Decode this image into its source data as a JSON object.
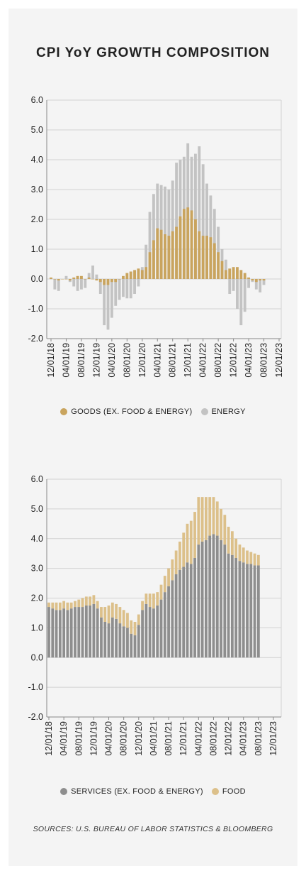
{
  "title": "CPI YoY GROWTH COMPOSITION",
  "source": "SOURCES: U.S. BUREAU OF LABOR STATISTICS & BLOOMBERG",
  "colors": {
    "goods": "#c9a45e",
    "energy": "#c3c3c3",
    "services": "#8e8e8e",
    "food": "#dcc08a"
  },
  "chart_data": [
    {
      "type": "bar",
      "stacked": false,
      "ylim": [
        -2.0,
        6.0
      ],
      "yticks": [
        "6.0",
        "5.0",
        "4.0",
        "3.0",
        "2.0",
        "1.0",
        "0.0",
        "-1.0",
        "-2.0"
      ],
      "xtick_labels": [
        "12/01/18",
        "04/01/19",
        "08/01/19",
        "12/01/19",
        "04/01/20",
        "08/01/20",
        "12/01/20",
        "04/01/21",
        "08/01/21",
        "12/01/21",
        "04/01/22",
        "08/01/22",
        "12/01/22",
        "04/01/23",
        "08/01/23",
        "12/01/23"
      ],
      "grid": "horizontal",
      "legend_position": "bottom",
      "series": [
        {
          "name": "GOODS (EX. FOOD & ENERGY)",
          "values": [
            0.05,
            0.0,
            -0.05,
            0.0,
            0.0,
            -0.05,
            0.05,
            0.1,
            0.1,
            0.0,
            0.05,
            0.0,
            -0.05,
            -0.1,
            -0.2,
            -0.2,
            -0.1,
            -0.1,
            0.0,
            0.1,
            0.2,
            0.25,
            0.3,
            0.35,
            0.3,
            0.4,
            0.9,
            1.3,
            1.7,
            1.65,
            1.5,
            1.45,
            1.6,
            1.75,
            2.1,
            2.35,
            2.4,
            2.3,
            2.0,
            1.6,
            1.45,
            1.45,
            1.4,
            1.2,
            0.9,
            0.6,
            0.3,
            0.35,
            0.4,
            0.4,
            0.3,
            0.2,
            0.05,
            -0.05,
            -0.1,
            -0.05,
            -0.05
          ]
        },
        {
          "name": "ENERGY",
          "values": [
            0.0,
            -0.35,
            -0.4,
            0.0,
            0.1,
            -0.1,
            -0.25,
            -0.4,
            -0.35,
            -0.3,
            0.2,
            0.45,
            0.15,
            -0.5,
            -1.55,
            -1.7,
            -1.3,
            -0.9,
            -0.7,
            -0.6,
            -0.65,
            -0.65,
            -0.5,
            -0.25,
            0.4,
            1.15,
            2.25,
            2.85,
            3.2,
            3.15,
            3.1,
            3.0,
            3.3,
            3.9,
            4.0,
            4.1,
            4.55,
            4.1,
            4.2,
            4.45,
            3.85,
            3.2,
            2.8,
            2.35,
            1.75,
            1.0,
            0.65,
            -0.5,
            -0.4,
            -1.0,
            -1.55,
            -1.1,
            -0.3,
            -0.1,
            -0.35,
            -0.45,
            -0.2
          ]
        }
      ]
    },
    {
      "type": "bar",
      "stacked": true,
      "ylim": [
        -2.0,
        6.0
      ],
      "yticks": [
        "6.0",
        "5.0",
        "4.0",
        "3.0",
        "2.0",
        "1.0",
        "0.0",
        "-1.0",
        "-2.0"
      ],
      "xtick_labels": [
        "12/01/18",
        "04/01/19",
        "08/01/19",
        "12/01/19",
        "04/01/20",
        "08/01/20",
        "12/01/20",
        "04/01/21",
        "08/01/21",
        "12/01/21",
        "04/01/22",
        "08/01/22",
        "12/01/22",
        "04/01/23",
        "08/01/23",
        "12/01/23"
      ],
      "grid": "horizontal",
      "legend_position": "bottom",
      "series": [
        {
          "name": "SERVICES (EX. FOOD & ENERGY)",
          "values": [
            1.7,
            1.65,
            1.6,
            1.6,
            1.65,
            1.6,
            1.65,
            1.7,
            1.7,
            1.7,
            1.75,
            1.75,
            1.8,
            1.65,
            1.35,
            1.2,
            1.15,
            1.35,
            1.3,
            1.15,
            1.05,
            1.0,
            0.8,
            0.75,
            1.1,
            1.6,
            1.8,
            1.7,
            1.65,
            1.75,
            1.95,
            2.2,
            2.4,
            2.6,
            2.8,
            2.95,
            3.05,
            3.2,
            3.15,
            3.35,
            3.8,
            3.9,
            3.95,
            4.1,
            4.15,
            4.1,
            3.95,
            3.8,
            3.5,
            3.45,
            3.35,
            3.25,
            3.2,
            3.15,
            3.15,
            3.1,
            3.1
          ]
        },
        {
          "name": "FOOD",
          "values": [
            0.15,
            0.2,
            0.25,
            0.25,
            0.25,
            0.25,
            0.2,
            0.2,
            0.25,
            0.3,
            0.3,
            0.3,
            0.3,
            0.25,
            0.35,
            0.5,
            0.6,
            0.5,
            0.5,
            0.55,
            0.55,
            0.5,
            0.45,
            0.45,
            0.35,
            0.3,
            0.35,
            0.45,
            0.5,
            0.45,
            0.5,
            0.55,
            0.6,
            0.7,
            0.8,
            0.95,
            1.15,
            1.3,
            1.45,
            1.55,
            1.6,
            1.5,
            1.45,
            1.3,
            1.25,
            1.15,
            1.05,
            1.0,
            0.9,
            0.8,
            0.65,
            0.55,
            0.5,
            0.45,
            0.4,
            0.4,
            0.35
          ]
        }
      ]
    }
  ]
}
